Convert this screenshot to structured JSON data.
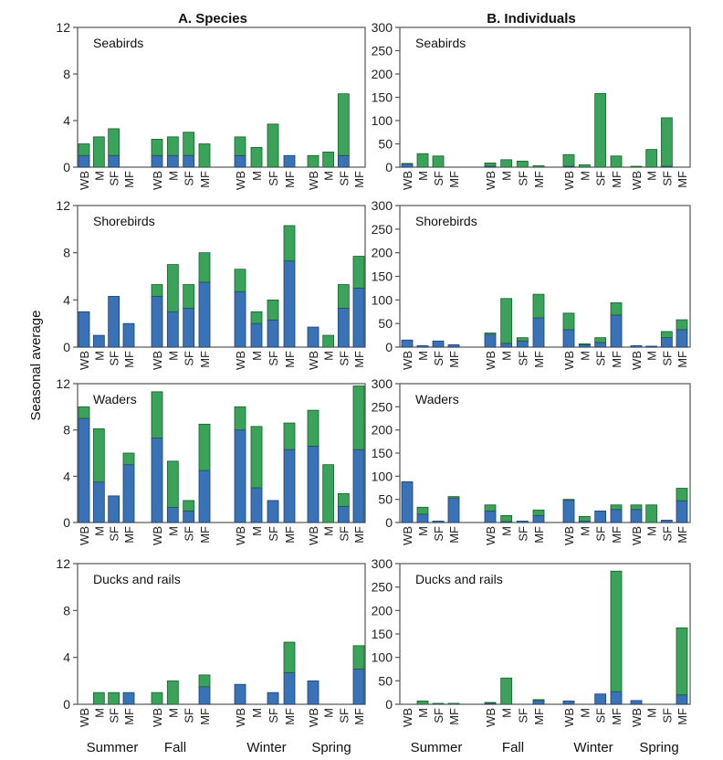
{
  "figure": {
    "ylabel": "Seasonal average",
    "colors": {
      "blue": "#3a72b8",
      "green": "#3aa35a",
      "frame": "#555555"
    }
  },
  "chart_data": [
    {
      "type": "bar",
      "stacked": true,
      "column": "A. Species",
      "title": "Seabirds",
      "ylim": [
        0,
        12
      ],
      "yticks": [
        "0",
        "4",
        "8",
        "12"
      ],
      "seasons": [
        "Summer",
        "Fall",
        "Winter",
        "Spring"
      ],
      "categories": [
        "WB",
        "M",
        "SF",
        "MF"
      ],
      "series": [
        {
          "values": [
            [
              1,
              0,
              1,
              0
            ],
            [
              1,
              1,
              1,
              0
            ],
            [
              1,
              0,
              0,
              1
            ],
            [
              0,
              0,
              1,
              0
            ]
          ]
        },
        {
          "values": [
            [
              1,
              2.6,
              2.3,
              0
            ],
            [
              1.4,
              1.6,
              2,
              2
            ],
            [
              1.6,
              1.7,
              3.7,
              0
            ],
            [
              1,
              1.3,
              5.3,
              0
            ]
          ]
        }
      ]
    },
    {
      "type": "bar",
      "stacked": true,
      "column": "B. Individuals",
      "title": "Seabirds",
      "ylim": [
        0,
        300
      ],
      "yticks": [
        "0",
        "50",
        "100",
        "150",
        "200",
        "250",
        "300"
      ],
      "seasons": [
        "Summer",
        "Fall",
        "Winter",
        "Spring"
      ],
      "categories": [
        "WB",
        "M",
        "SF",
        "MF"
      ],
      "series": [
        {
          "values": [
            [
              7,
              0,
              0,
              0
            ],
            [
              2,
              0,
              0,
              0
            ],
            [
              2,
              0,
              0,
              0
            ],
            [
              0,
              0,
              2,
              0
            ]
          ]
        },
        {
          "values": [
            [
              1,
              29,
              24,
              0
            ],
            [
              7,
              16,
              13,
              3
            ],
            [
              25,
              5,
              158,
              24
            ],
            [
              2,
              38,
              104,
              0
            ]
          ]
        }
      ]
    },
    {
      "type": "bar",
      "stacked": true,
      "column": "A. Species",
      "title": "Shorebirds",
      "ylim": [
        0,
        12
      ],
      "yticks": [
        "0",
        "4",
        "8",
        "12"
      ],
      "seasons": [
        "Summer",
        "Fall",
        "Winter",
        "Spring"
      ],
      "categories": [
        "WB",
        "M",
        "SF",
        "MF"
      ],
      "series": [
        {
          "values": [
            [
              3,
              1,
              4.3,
              2
            ],
            [
              4.3,
              3,
              3.3,
              5.5
            ],
            [
              4.7,
              2,
              2.3,
              7.3
            ],
            [
              1.7,
              0,
              3.3,
              5
            ]
          ]
        },
        {
          "values": [
            [
              0,
              0,
              0,
              0
            ],
            [
              1,
              4,
              2,
              2.5
            ],
            [
              1.9,
              1,
              1.7,
              3
            ],
            [
              0,
              1,
              2,
              2.7
            ]
          ]
        }
      ]
    },
    {
      "type": "bar",
      "stacked": true,
      "column": "B. Individuals",
      "title": "Shorebirds",
      "ylim": [
        0,
        300
      ],
      "yticks": [
        "0",
        "50",
        "100",
        "150",
        "200",
        "250",
        "300"
      ],
      "seasons": [
        "Summer",
        "Fall",
        "Winter",
        "Spring"
      ],
      "categories": [
        "WB",
        "M",
        "SF",
        "MF"
      ],
      "series": [
        {
          "values": [
            [
              15,
              3,
              13,
              5
            ],
            [
              27,
              8,
              13,
              62
            ],
            [
              37,
              5,
              10,
              68
            ],
            [
              3,
              2,
              20,
              37
            ]
          ]
        },
        {
          "values": [
            [
              0,
              0,
              0,
              0
            ],
            [
              3,
              95,
              7,
              50
            ],
            [
              35,
              2,
              10,
              26
            ],
            [
              0,
              0,
              13,
              21
            ]
          ]
        }
      ]
    },
    {
      "type": "bar",
      "stacked": true,
      "column": "A. Species",
      "title": "Waders",
      "ylim": [
        0,
        12
      ],
      "yticks": [
        "0",
        "4",
        "8",
        "12"
      ],
      "seasons": [
        "Summer",
        "Fall",
        "Winter",
        "Spring"
      ],
      "categories": [
        "WB",
        "M",
        "SF",
        "MF"
      ],
      "series": [
        {
          "values": [
            [
              9,
              3.5,
              2.3,
              5
            ],
            [
              7.3,
              1.3,
              1,
              4.5
            ],
            [
              8,
              3,
              1.9,
              6.3
            ],
            [
              6.6,
              0,
              1.4,
              6.3
            ]
          ]
        },
        {
          "values": [
            [
              1,
              4.6,
              0,
              1
            ],
            [
              4,
              4,
              0.9,
              4
            ],
            [
              2,
              5.3,
              0,
              2.3
            ],
            [
              3.1,
              5,
              1.1,
              5.5
            ]
          ]
        }
      ]
    },
    {
      "type": "bar",
      "stacked": true,
      "column": "B. Individuals",
      "title": "Waders",
      "ylim": [
        0,
        300
      ],
      "yticks": [
        "0",
        "50",
        "100",
        "150",
        "200",
        "250",
        "300"
      ],
      "seasons": [
        "Summer",
        "Fall",
        "Winter",
        "Spring"
      ],
      "categories": [
        "WB",
        "M",
        "SF",
        "MF"
      ],
      "series": [
        {
          "values": [
            [
              88,
              18,
              3,
              53
            ],
            [
              25,
              2,
              3,
              15
            ],
            [
              48,
              3,
              25,
              28
            ],
            [
              28,
              0,
              5,
              47
            ]
          ]
        },
        {
          "values": [
            [
              0,
              15,
              0,
              3
            ],
            [
              13,
              13,
              0,
              12
            ],
            [
              2,
              10,
              0,
              10
            ],
            [
              10,
              38,
              0,
              27
            ]
          ]
        }
      ]
    },
    {
      "type": "bar",
      "stacked": true,
      "column": "A. Species",
      "title": "Ducks and rails",
      "ylim": [
        0,
        12
      ],
      "yticks": [
        "0",
        "4",
        "8",
        "12"
      ],
      "seasons": [
        "Summer",
        "Fall",
        "Winter",
        "Spring"
      ],
      "categories": [
        "WB",
        "M",
        "SF",
        "MF"
      ],
      "series": [
        {
          "values": [
            [
              0,
              0,
              0,
              1
            ],
            [
              0,
              0,
              0,
              1.5
            ],
            [
              1.7,
              0,
              1,
              2.7
            ],
            [
              2,
              0,
              0,
              3
            ]
          ]
        },
        {
          "values": [
            [
              0,
              1,
              1,
              0
            ],
            [
              1,
              2,
              0,
              1
            ],
            [
              0,
              0,
              0,
              2.6
            ],
            [
              0,
              0,
              0,
              2
            ]
          ]
        }
      ]
    },
    {
      "type": "bar",
      "stacked": true,
      "column": "B. Individuals",
      "title": "Ducks and rails",
      "ylim": [
        0,
        300
      ],
      "yticks": [
        "0",
        "50",
        "100",
        "150",
        "200",
        "250",
        "300"
      ],
      "seasons": [
        "Summer",
        "Fall",
        "Winter",
        "Spring"
      ],
      "categories": [
        "WB",
        "M",
        "SF",
        "MF"
      ],
      "series": [
        {
          "values": [
            [
              0,
              0,
              0,
              0
            ],
            [
              2,
              0,
              0,
              8
            ],
            [
              7,
              0,
              22,
              27
            ],
            [
              8,
              0,
              0,
              20
            ]
          ]
        },
        {
          "values": [
            [
              0,
              7,
              2,
              2
            ],
            [
              2,
              56,
              0,
              2
            ],
            [
              0,
              0,
              0,
              257
            ],
            [
              0,
              0,
              0,
              143
            ]
          ]
        }
      ]
    }
  ]
}
